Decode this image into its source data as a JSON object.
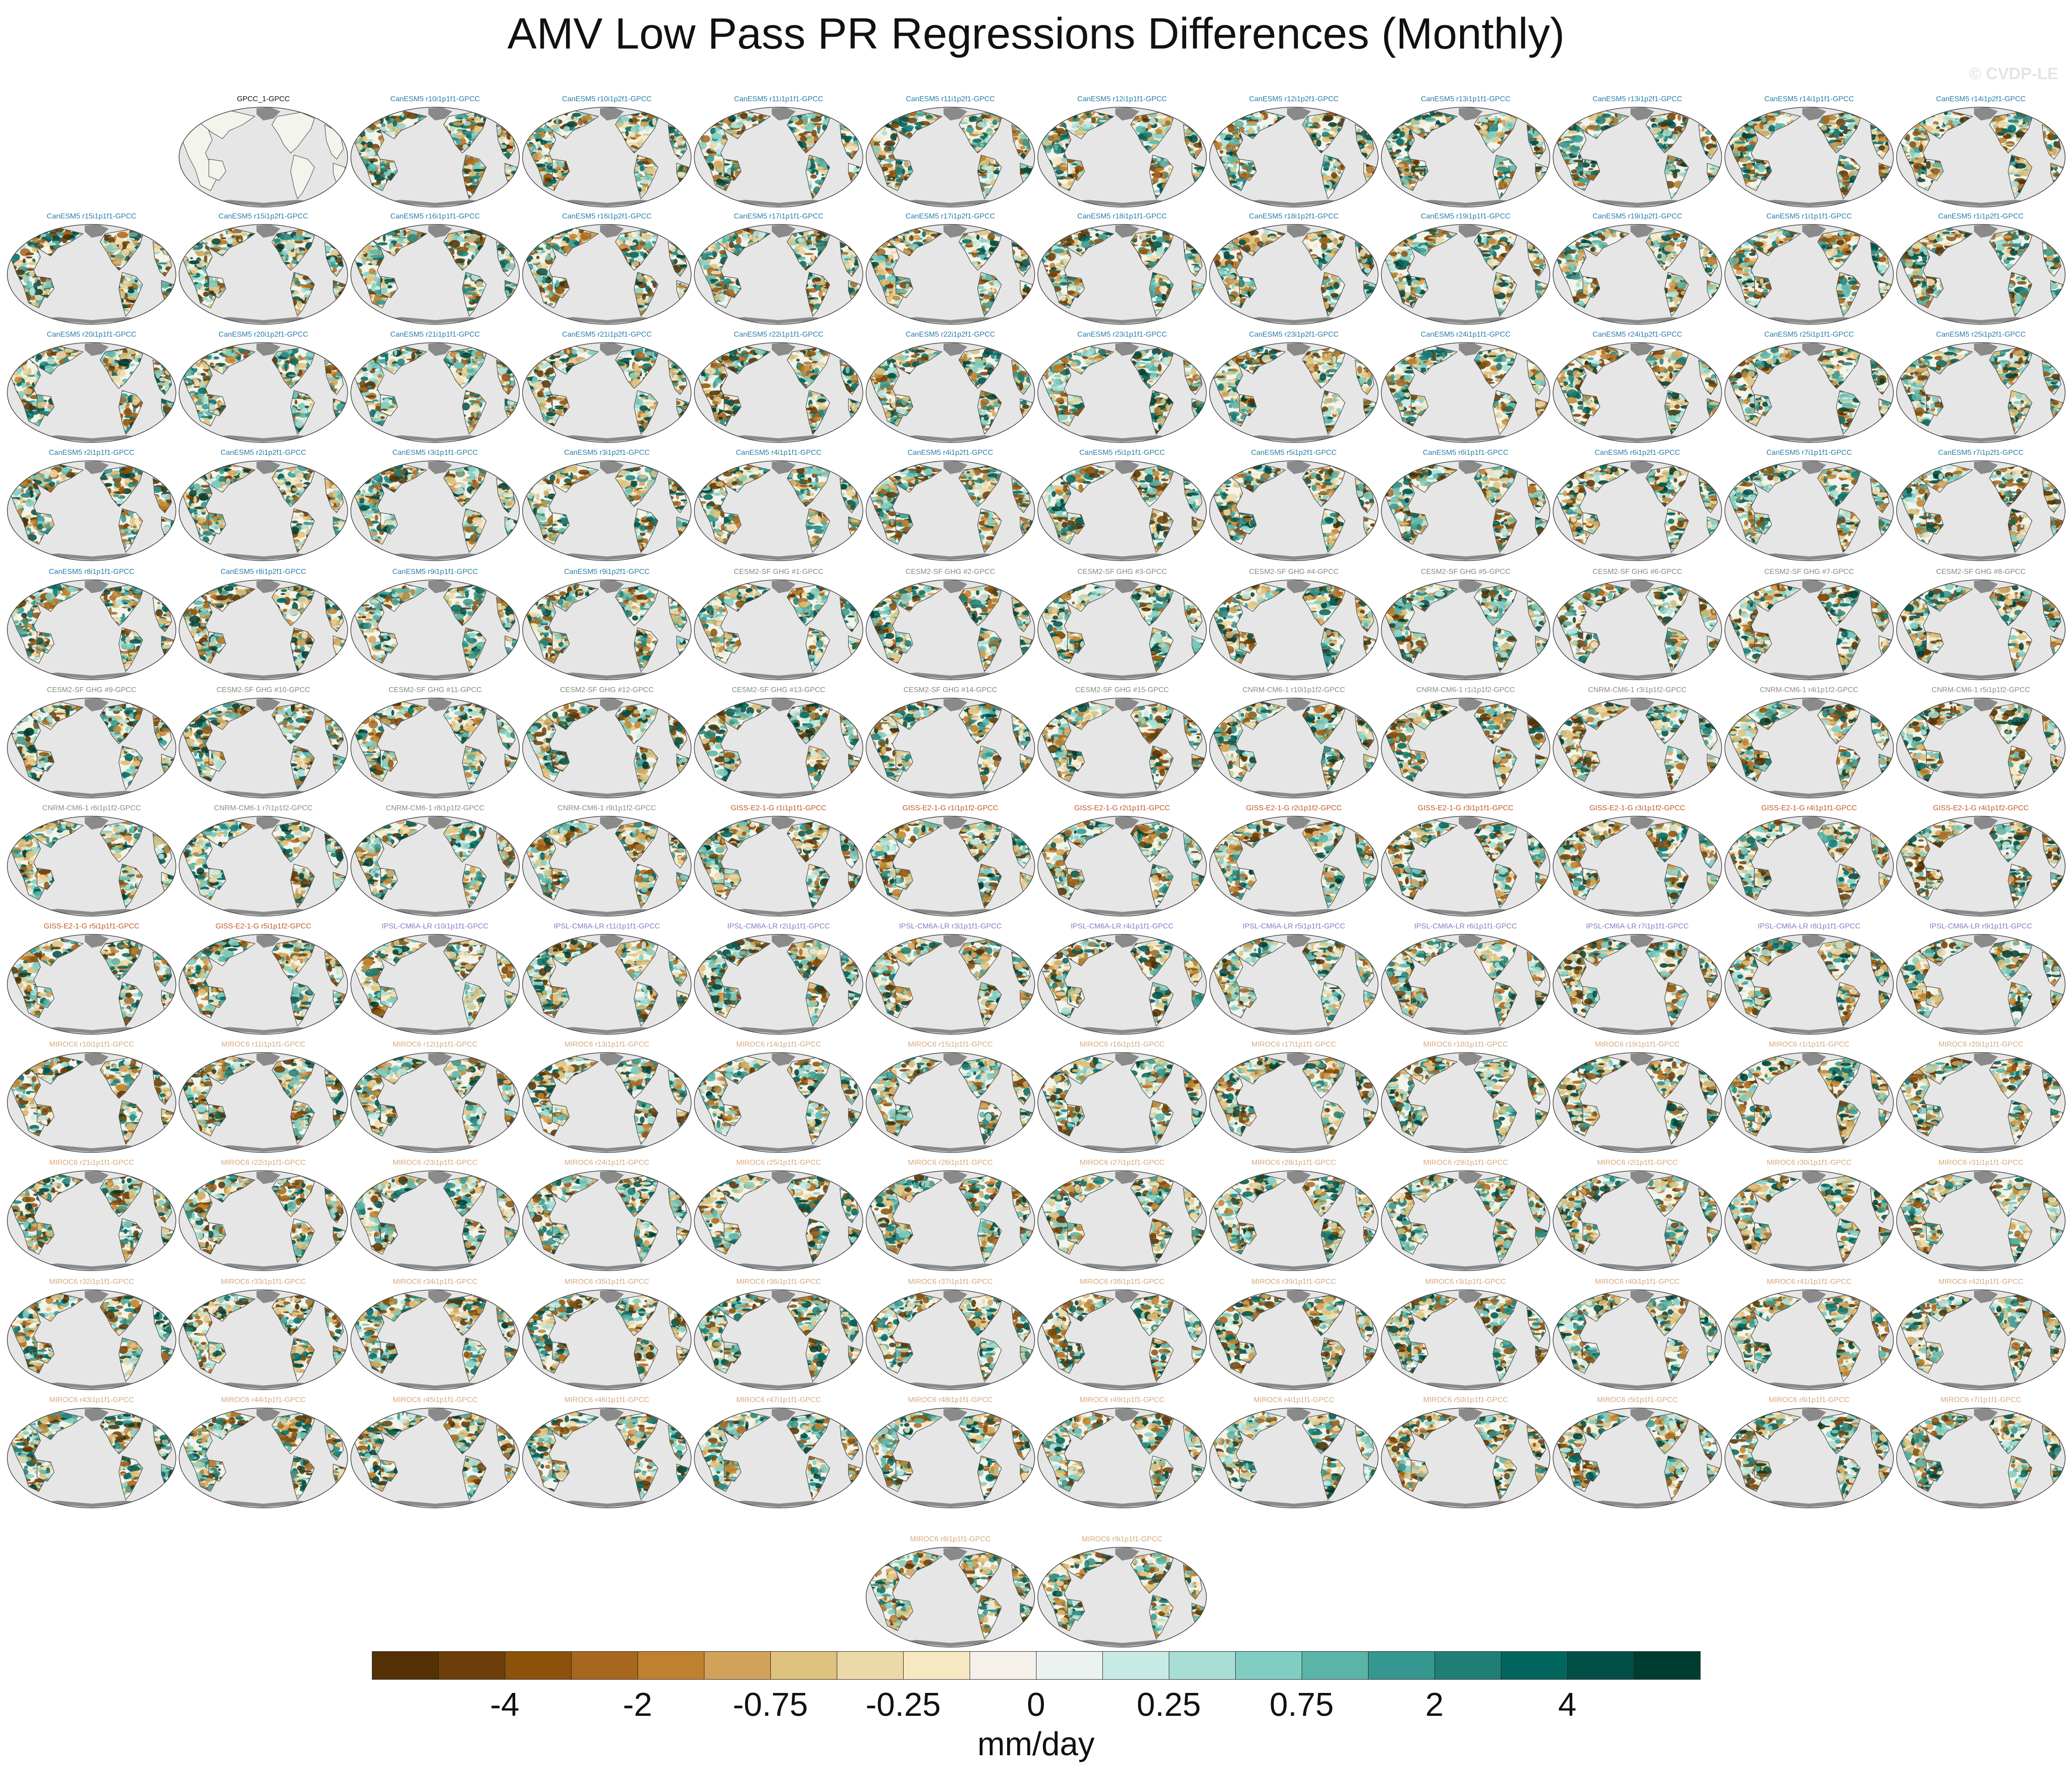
{
  "title": "AMV Low Pass PR Regressions Differences (Monthly)",
  "watermark": "© CVDP-LE",
  "panel_style": {
    "ocean_color": "#e6e6e6",
    "land_color": "#f3f4ec",
    "ice_color": "#8a8a8a",
    "coast_color": "#555555"
  },
  "model_colors": {
    "obs": "#111111",
    "CanESM5": "#2b7da6",
    "CESM2-SF-GHG": "#7f8f7a",
    "CNRM-CM6-1": "#8c8c8c",
    "GISS-E2-1-G": "#c0582a",
    "IPSL-CM6A-LR": "#8d77c2",
    "MIROC6": "#d7a97e"
  },
  "panels": [
    {
      "label": "GPCC_1-GPCC",
      "model": "obs"
    },
    {
      "label": "CanESM5 r10i1p1f1-GPCC",
      "model": "CanESM5"
    },
    {
      "label": "CanESM5 r10i1p2f1-GPCC",
      "model": "CanESM5"
    },
    {
      "label": "CanESM5 r11i1p1f1-GPCC",
      "model": "CanESM5"
    },
    {
      "label": "CanESM5 r11i1p2f1-GPCC",
      "model": "CanESM5"
    },
    {
      "label": "CanESM5 r12i1p1f1-GPCC",
      "model": "CanESM5"
    },
    {
      "label": "CanESM5 r12i1p2f1-GPCC",
      "model": "CanESM5"
    },
    {
      "label": "CanESM5 r13i1p1f1-GPCC",
      "model": "CanESM5"
    },
    {
      "label": "CanESM5 r13i1p2f1-GPCC",
      "model": "CanESM5"
    },
    {
      "label": "CanESM5 r14i1p1f1-GPCC",
      "model": "CanESM5"
    },
    {
      "label": "CanESM5 r14i1p2f1-GPCC",
      "model": "CanESM5"
    },
    {
      "label": "CanESM5 r15i1p1f1-GPCC",
      "model": "CanESM5"
    },
    {
      "label": "CanESM5 r15i1p2f1-GPCC",
      "model": "CanESM5"
    },
    {
      "label": "CanESM5 r16i1p1f1-GPCC",
      "model": "CanESM5"
    },
    {
      "label": "CanESM5 r16i1p2f1-GPCC",
      "model": "CanESM5"
    },
    {
      "label": "CanESM5 r17i1p1f1-GPCC",
      "model": "CanESM5"
    },
    {
      "label": "CanESM5 r17i1p2f1-GPCC",
      "model": "CanESM5"
    },
    {
      "label": "CanESM5 r18i1p1f1-GPCC",
      "model": "CanESM5"
    },
    {
      "label": "CanESM5 r18i1p2f1-GPCC",
      "model": "CanESM5"
    },
    {
      "label": "CanESM5 r19i1p1f1-GPCC",
      "model": "CanESM5"
    },
    {
      "label": "CanESM5 r19i1p2f1-GPCC",
      "model": "CanESM5"
    },
    {
      "label": "CanESM5 r1i1p1f1-GPCC",
      "model": "CanESM5"
    },
    {
      "label": "CanESM5 r1i1p2f1-GPCC",
      "model": "CanESM5"
    },
    {
      "label": "CanESM5 r20i1p1f1-GPCC",
      "model": "CanESM5"
    },
    {
      "label": "CanESM5 r20i1p2f1-GPCC",
      "model": "CanESM5"
    },
    {
      "label": "CanESM5 r21i1p1f1-GPCC",
      "model": "CanESM5"
    },
    {
      "label": "CanESM5 r21i1p2f1-GPCC",
      "model": "CanESM5"
    },
    {
      "label": "CanESM5 r22i1p1f1-GPCC",
      "model": "CanESM5"
    },
    {
      "label": "CanESM5 r22i1p2f1-GPCC",
      "model": "CanESM5"
    },
    {
      "label": "CanESM5 r23i1p1f1-GPCC",
      "model": "CanESM5"
    },
    {
      "label": "CanESM5 r23i1p2f1-GPCC",
      "model": "CanESM5"
    },
    {
      "label": "CanESM5 r24i1p1f1-GPCC",
      "model": "CanESM5"
    },
    {
      "label": "CanESM5 r24i1p2f1-GPCC",
      "model": "CanESM5"
    },
    {
      "label": "CanESM5 r25i1p1f1-GPCC",
      "model": "CanESM5"
    },
    {
      "label": "CanESM5 r25i1p2f1-GPCC",
      "model": "CanESM5"
    },
    {
      "label": "CanESM5 r2i1p1f1-GPCC",
      "model": "CanESM5"
    },
    {
      "label": "CanESM5 r2i1p2f1-GPCC",
      "model": "CanESM5"
    },
    {
      "label": "CanESM5 r3i1p1f1-GPCC",
      "model": "CanESM5"
    },
    {
      "label": "CanESM5 r3i1p2f1-GPCC",
      "model": "CanESM5"
    },
    {
      "label": "CanESM5 r4i1p1f1-GPCC",
      "model": "CanESM5"
    },
    {
      "label": "CanESM5 r4i1p2f1-GPCC",
      "model": "CanESM5"
    },
    {
      "label": "CanESM5 r5i1p1f1-GPCC",
      "model": "CanESM5"
    },
    {
      "label": "CanESM5 r5i1p2f1-GPCC",
      "model": "CanESM5"
    },
    {
      "label": "CanESM5 r6i1p1f1-GPCC",
      "model": "CanESM5"
    },
    {
      "label": "CanESM5 r6i1p2f1-GPCC",
      "model": "CanESM5"
    },
    {
      "label": "CanESM5 r7i1p1f1-GPCC",
      "model": "CanESM5"
    },
    {
      "label": "CanESM5 r7i1p2f1-GPCC",
      "model": "CanESM5"
    },
    {
      "label": "CanESM5 r8i1p1f1-GPCC",
      "model": "CanESM5"
    },
    {
      "label": "CanESM5 r8i1p2f1-GPCC",
      "model": "CanESM5"
    },
    {
      "label": "CanESM5 r9i1p1f1-GPCC",
      "model": "CanESM5"
    },
    {
      "label": "CanESM5 r9i1p2f1-GPCC",
      "model": "CanESM5"
    },
    {
      "label": "CESM2-SF GHG #1-GPCC",
      "model": "CESM2-SF-GHG"
    },
    {
      "label": "CESM2-SF GHG #2-GPCC",
      "model": "CESM2-SF-GHG"
    },
    {
      "label": "CESM2-SF GHG #3-GPCC",
      "model": "CESM2-SF-GHG"
    },
    {
      "label": "CESM2-SF GHG #4-GPCC",
      "model": "CESM2-SF-GHG"
    },
    {
      "label": "CESM2-SF GHG #5-GPCC",
      "model": "CESM2-SF-GHG"
    },
    {
      "label": "CESM2-SF GHG #6-GPCC",
      "model": "CESM2-SF-GHG"
    },
    {
      "label": "CESM2-SF GHG #7-GPCC",
      "model": "CESM2-SF-GHG"
    },
    {
      "label": "CESM2-SF GHG #8-GPCC",
      "model": "CESM2-SF-GHG"
    },
    {
      "label": "CESM2-SF GHG #9-GPCC",
      "model": "CESM2-SF-GHG"
    },
    {
      "label": "CESM2-SF GHG #10-GPCC",
      "model": "CESM2-SF-GHG"
    },
    {
      "label": "CESM2-SF GHG #11-GPCC",
      "model": "CESM2-SF-GHG"
    },
    {
      "label": "CESM2-SF GHG #12-GPCC",
      "model": "CESM2-SF-GHG"
    },
    {
      "label": "CESM2-SF GHG #13-GPCC",
      "model": "CESM2-SF-GHG"
    },
    {
      "label": "CESM2-SF GHG #14-GPCC",
      "model": "CESM2-SF-GHG"
    },
    {
      "label": "CESM2-SF GHG #15-GPCC",
      "model": "CESM2-SF-GHG"
    },
    {
      "label": "CNRM-CM6-1 r10i1p1f2-GPCC",
      "model": "CNRM-CM6-1"
    },
    {
      "label": "CNRM-CM6-1 r1i1p1f2-GPCC",
      "model": "CNRM-CM6-1"
    },
    {
      "label": "CNRM-CM6-1 r3i1p1f2-GPCC",
      "model": "CNRM-CM6-1"
    },
    {
      "label": "CNRM-CM6-1 r4i1p1f2-GPCC",
      "model": "CNRM-CM6-1"
    },
    {
      "label": "CNRM-CM6-1 r5i1p1f2-GPCC",
      "model": "CNRM-CM6-1"
    },
    {
      "label": "CNRM-CM6-1 r6i1p1f2-GPCC",
      "model": "CNRM-CM6-1"
    },
    {
      "label": "CNRM-CM6-1 r7i1p1f2-GPCC",
      "model": "CNRM-CM6-1"
    },
    {
      "label": "CNRM-CM6-1 r8i1p1f2-GPCC",
      "model": "CNRM-CM6-1"
    },
    {
      "label": "CNRM-CM6-1 r9i1p1f2-GPCC",
      "model": "CNRM-CM6-1"
    },
    {
      "label": "GISS-E2-1-G r1i1p1f1-GPCC",
      "model": "GISS-E2-1-G"
    },
    {
      "label": "GISS-E2-1-G r1i1p1f2-GPCC",
      "model": "GISS-E2-1-G"
    },
    {
      "label": "GISS-E2-1-G r2i1p1f1-GPCC",
      "model": "GISS-E2-1-G"
    },
    {
      "label": "GISS-E2-1-G r2i1p1f2-GPCC",
      "model": "GISS-E2-1-G"
    },
    {
      "label": "GISS-E2-1-G r3i1p1f1-GPCC",
      "model": "GISS-E2-1-G"
    },
    {
      "label": "GISS-E2-1-G r3i1p1f2-GPCC",
      "model": "GISS-E2-1-G"
    },
    {
      "label": "GISS-E2-1-G r4i1p1f1-GPCC",
      "model": "GISS-E2-1-G"
    },
    {
      "label": "GISS-E2-1-G r4i1p1f2-GPCC",
      "model": "GISS-E2-1-G"
    },
    {
      "label": "GISS-E2-1-G r5i1p1f1-GPCC",
      "model": "GISS-E2-1-G"
    },
    {
      "label": "GISS-E2-1-G r5i1p1f2-GPCC",
      "model": "GISS-E2-1-G"
    },
    {
      "label": "IPSL-CM6A-LR r10i1p1f1-GPCC",
      "model": "IPSL-CM6A-LR"
    },
    {
      "label": "IPSL-CM6A-LR r11i1p1f1-GPCC",
      "model": "IPSL-CM6A-LR"
    },
    {
      "label": "IPSL-CM6A-LR r2i1p1f1-GPCC",
      "model": "IPSL-CM6A-LR"
    },
    {
      "label": "IPSL-CM6A-LR r3i1p1f1-GPCC",
      "model": "IPSL-CM6A-LR"
    },
    {
      "label": "IPSL-CM6A-LR r4i1p1f1-GPCC",
      "model": "IPSL-CM6A-LR"
    },
    {
      "label": "IPSL-CM6A-LR r5i1p1f1-GPCC",
      "model": "IPSL-CM6A-LR"
    },
    {
      "label": "IPSL-CM6A-LR r6i1p1f1-GPCC",
      "model": "IPSL-CM6A-LR"
    },
    {
      "label": "IPSL-CM6A-LR r7i1p1f1-GPCC",
      "model": "IPSL-CM6A-LR"
    },
    {
      "label": "IPSL-CM6A-LR r8i1p1f1-GPCC",
      "model": "IPSL-CM6A-LR"
    },
    {
      "label": "IPSL-CM6A-LR r9i1p1f1-GPCC",
      "model": "IPSL-CM6A-LR"
    },
    {
      "label": "MIROC6 r10i1p1f1-GPCC",
      "model": "MIROC6"
    },
    {
      "label": "MIROC6 r11i1p1f1-GPCC",
      "model": "MIROC6"
    },
    {
      "label": "MIROC6 r12i1p1f1-GPCC",
      "model": "MIROC6"
    },
    {
      "label": "MIROC6 r13i1p1f1-GPCC",
      "model": "MIROC6"
    },
    {
      "label": "MIROC6 r14i1p1f1-GPCC",
      "model": "MIROC6"
    },
    {
      "label": "MIROC6 r15i1p1f1-GPCC",
      "model": "MIROC6"
    },
    {
      "label": "MIROC6 r16i1p1f1-GPCC",
      "model": "MIROC6"
    },
    {
      "label": "MIROC6 r17i1p1f1-GPCC",
      "model": "MIROC6"
    },
    {
      "label": "MIROC6 r18i1p1f1-GPCC",
      "model": "MIROC6"
    },
    {
      "label": "MIROC6 r19i1p1f1-GPCC",
      "model": "MIROC6"
    },
    {
      "label": "MIROC6 r1i1p1f1-GPCC",
      "model": "MIROC6"
    },
    {
      "label": "MIROC6 r20i1p1f1-GPCC",
      "model": "MIROC6"
    },
    {
      "label": "MIROC6 r21i1p1f1-GPCC",
      "model": "MIROC6"
    },
    {
      "label": "MIROC6 r22i1p1f1-GPCC",
      "model": "MIROC6"
    },
    {
      "label": "MIROC6 r23i1p1f1-GPCC",
      "model": "MIROC6"
    },
    {
      "label": "MIROC6 r24i1p1f1-GPCC",
      "model": "MIROC6"
    },
    {
      "label": "MIROC6 r25i1p1f1-GPCC",
      "model": "MIROC6"
    },
    {
      "label": "MIROC6 r26i1p1f1-GPCC",
      "model": "MIROC6"
    },
    {
      "label": "MIROC6 r27i1p1f1-GPCC",
      "model": "MIROC6"
    },
    {
      "label": "MIROC6 r28i1p1f1-GPCC",
      "model": "MIROC6"
    },
    {
      "label": "MIROC6 r29i1p1f1-GPCC",
      "model": "MIROC6"
    },
    {
      "label": "MIROC6 r2i1p1f1-GPCC",
      "model": "MIROC6"
    },
    {
      "label": "MIROC6 r30i1p1f1-GPCC",
      "model": "MIROC6"
    },
    {
      "label": "MIROC6 r31i1p1f1-GPCC",
      "model": "MIROC6"
    },
    {
      "label": "MIROC6 r32i1p1f1-GPCC",
      "model": "MIROC6"
    },
    {
      "label": "MIROC6 r33i1p1f1-GPCC",
      "model": "MIROC6"
    },
    {
      "label": "MIROC6 r34i1p1f1-GPCC",
      "model": "MIROC6"
    },
    {
      "label": "MIROC6 r35i1p1f1-GPCC",
      "model": "MIROC6"
    },
    {
      "label": "MIROC6 r36i1p1f1-GPCC",
      "model": "MIROC6"
    },
    {
      "label": "MIROC6 r37i1p1f1-GPCC",
      "model": "MIROC6"
    },
    {
      "label": "MIROC6 r38i1p1f1-GPCC",
      "model": "MIROC6"
    },
    {
      "label": "MIROC6 r39i1p1f1-GPCC",
      "model": "MIROC6"
    },
    {
      "label": "MIROC6 r3i1p1f1-GPCC",
      "model": "MIROC6"
    },
    {
      "label": "MIROC6 r40i1p1f1-GPCC",
      "model": "MIROC6"
    },
    {
      "label": "MIROC6 r41i1p1f1-GPCC",
      "model": "MIROC6"
    },
    {
      "label": "MIROC6 r42i1p1f1-GPCC",
      "model": "MIROC6"
    },
    {
      "label": "MIROC6 r43i1p1f1-GPCC",
      "model": "MIROC6"
    },
    {
      "label": "MIROC6 r44i1p1f1-GPCC",
      "model": "MIROC6"
    },
    {
      "label": "MIROC6 r45i1p1f1-GPCC",
      "model": "MIROC6"
    },
    {
      "label": "MIROC6 r46i1p1f1-GPCC",
      "model": "MIROC6"
    },
    {
      "label": "MIROC6 r47i1p1f1-GPCC",
      "model": "MIROC6"
    },
    {
      "label": "MIROC6 r48i1p1f1-GPCC",
      "model": "MIROC6"
    },
    {
      "label": "MIROC6 r49i1p1f1-GPCC",
      "model": "MIROC6"
    },
    {
      "label": "MIROC6 r4i1p1f1-GPCC",
      "model": "MIROC6"
    },
    {
      "label": "MIROC6 r50i1p1f1-GPCC",
      "model": "MIROC6"
    },
    {
      "label": "MIROC6 r5i1p1f1-GPCC",
      "model": "MIROC6"
    },
    {
      "label": "MIROC6 r6i1p1f1-GPCC",
      "model": "MIROC6"
    },
    {
      "label": "MIROC6 r7i1p1f1-GPCC",
      "model": "MIROC6"
    },
    {
      "label": "MIROC6 r8i1p1f1-GPCC",
      "model": "MIROC6"
    },
    {
      "label": "MIROC6 r9i1p1f1-GPCC",
      "model": "MIROC6"
    }
  ],
  "colorbar": {
    "unit": "mm/day",
    "colors": [
      "#543005",
      "#6e3f0a",
      "#8c510a",
      "#a8671e",
      "#bf812d",
      "#d2a25a",
      "#dfc27d",
      "#ecd9a8",
      "#f6e8c3",
      "#f5f1ea",
      "#ecf2f0",
      "#c7eae5",
      "#a9ded4",
      "#80cdc1",
      "#5ab4a7",
      "#35978f",
      "#1f7f77",
      "#01665e",
      "#014f46",
      "#003c30"
    ],
    "tick_labels": [
      "-4",
      "-2",
      "-0.75",
      "-0.25",
      "0",
      "0.25",
      "0.75",
      "2",
      "4"
    ],
    "tick_boundaries": [
      2,
      4,
      6,
      8,
      10,
      12,
      14,
      16,
      18
    ]
  }
}
